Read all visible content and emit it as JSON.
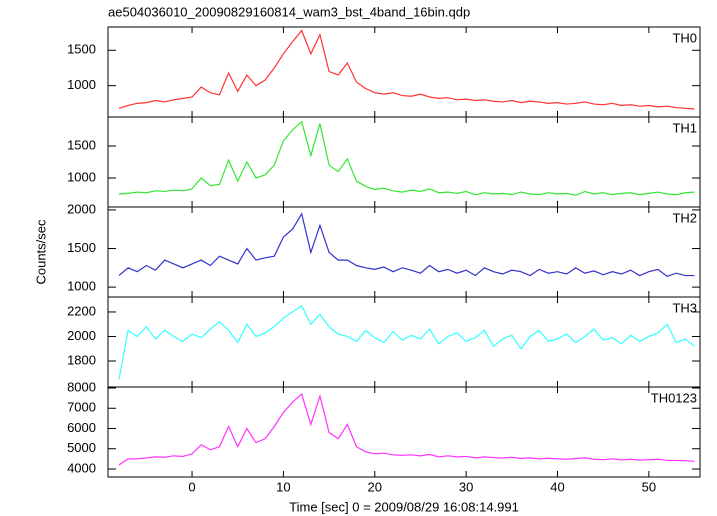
{
  "chart_data": [
    {
      "type": "line",
      "title": "ae504036010_20090829160814_wam3_bst_4band_16bin.qdp",
      "label": "TH0",
      "color": "#ff3333",
      "x": [
        -8,
        -7,
        -6,
        -5,
        -4,
        -3,
        -2,
        -1,
        0,
        1,
        2,
        3,
        4,
        5,
        6,
        7,
        8,
        9,
        10,
        11,
        12,
        13,
        14,
        15,
        16,
        17,
        18,
        19,
        20,
        21,
        22,
        23,
        24,
        25,
        26,
        27,
        28,
        29,
        30,
        31,
        32,
        33,
        34,
        35,
        36,
        37,
        38,
        39,
        40,
        41,
        42,
        43,
        44,
        45,
        46,
        47,
        48,
        49,
        50,
        51,
        52,
        53,
        54,
        55
      ],
      "values": [
        680,
        720,
        750,
        760,
        790,
        770,
        800,
        820,
        840,
        980,
        900,
        870,
        1180,
        920,
        1150,
        1000,
        1080,
        1250,
        1450,
        1620,
        1780,
        1450,
        1720,
        1200,
        1150,
        1320,
        1050,
        960,
        900,
        880,
        900,
        860,
        850,
        880,
        840,
        820,
        830,
        800,
        810,
        790,
        800,
        780,
        770,
        790,
        760,
        780,
        770,
        750,
        760,
        740,
        750,
        770,
        740,
        730,
        750,
        720,
        730,
        710,
        720,
        700,
        710,
        690,
        680,
        670
      ],
      "xlim": [
        -9.2,
        55.6
      ],
      "xticks": [
        0,
        10,
        20,
        30,
        40,
        50
      ],
      "ylim": [
        557,
        1829
      ],
      "yticks": [
        1000,
        1500
      ]
    },
    {
      "type": "line",
      "label": "TH1",
      "color": "#33e633",
      "x": [
        -8,
        -7,
        -6,
        -5,
        -4,
        -3,
        -2,
        -1,
        0,
        1,
        2,
        3,
        4,
        5,
        6,
        7,
        8,
        9,
        10,
        11,
        12,
        13,
        14,
        15,
        16,
        17,
        18,
        19,
        20,
        21,
        22,
        23,
        24,
        25,
        26,
        27,
        28,
        29,
        30,
        31,
        32,
        33,
        34,
        35,
        36,
        37,
        38,
        39,
        40,
        41,
        42,
        43,
        44,
        45,
        46,
        47,
        48,
        49,
        50,
        51,
        52,
        53,
        54,
        55
      ],
      "values": [
        750,
        760,
        780,
        770,
        800,
        790,
        810,
        800,
        830,
        1000,
        880,
        900,
        1280,
        950,
        1250,
        1000,
        1050,
        1200,
        1580,
        1750,
        1880,
        1350,
        1850,
        1200,
        1100,
        1300,
        950,
        870,
        820,
        840,
        800,
        780,
        810,
        790,
        830,
        770,
        780,
        760,
        790,
        740,
        770,
        750,
        760,
        740,
        780,
        750,
        740,
        770,
        750,
        760,
        730,
        790,
        750,
        770,
        740,
        760,
        770,
        740,
        760,
        780,
        750,
        740,
        770,
        780
      ],
      "xlim": [
        -9.2,
        55.6
      ],
      "xticks": [
        0,
        10,
        20,
        30,
        40,
        50
      ],
      "ylim": [
        547,
        1953
      ],
      "yticks": [
        1000,
        1500
      ]
    },
    {
      "type": "line",
      "label": "TH2",
      "ylabel": "Counts/sec",
      "color": "#3333cc",
      "x": [
        -8,
        -7,
        -6,
        -5,
        -4,
        -3,
        -2,
        -1,
        0,
        1,
        2,
        3,
        4,
        5,
        6,
        7,
        8,
        9,
        10,
        11,
        12,
        13,
        14,
        15,
        16,
        17,
        18,
        19,
        20,
        21,
        22,
        23,
        24,
        25,
        26,
        27,
        28,
        29,
        30,
        31,
        32,
        33,
        34,
        35,
        36,
        37,
        38,
        39,
        40,
        41,
        42,
        43,
        44,
        45,
        46,
        47,
        48,
        49,
        50,
        51,
        52,
        53,
        54,
        55
      ],
      "values": [
        1150,
        1250,
        1200,
        1280,
        1220,
        1350,
        1300,
        1250,
        1300,
        1350,
        1280,
        1400,
        1350,
        1300,
        1500,
        1350,
        1380,
        1400,
        1650,
        1750,
        1950,
        1450,
        1800,
        1450,
        1350,
        1350,
        1280,
        1250,
        1230,
        1260,
        1200,
        1250,
        1220,
        1180,
        1280,
        1200,
        1230,
        1180,
        1220,
        1150,
        1250,
        1200,
        1170,
        1220,
        1200,
        1150,
        1230,
        1180,
        1200,
        1170,
        1250,
        1180,
        1210,
        1160,
        1200,
        1170,
        1220,
        1150,
        1200,
        1230,
        1140,
        1180,
        1150,
        1150
      ],
      "xlim": [
        -9.2,
        55.6
      ],
      "xticks": [
        0,
        10,
        20,
        30,
        40,
        50
      ],
      "ylim": [
        872,
        2038
      ],
      "yticks": [
        1000,
        1500,
        2000
      ]
    },
    {
      "type": "line",
      "label": "TH3",
      "color": "#33ffff",
      "x": [
        -8,
        -7,
        -6,
        -5,
        -4,
        -3,
        -2,
        -1,
        0,
        1,
        2,
        3,
        4,
        5,
        6,
        7,
        8,
        9,
        10,
        11,
        12,
        13,
        14,
        15,
        16,
        17,
        18,
        19,
        20,
        21,
        22,
        23,
        24,
        25,
        26,
        27,
        28,
        29,
        30,
        31,
        32,
        33,
        34,
        35,
        36,
        37,
        38,
        39,
        40,
        41,
        42,
        43,
        44,
        45,
        46,
        47,
        48,
        49,
        50,
        51,
        52,
        53,
        54,
        55
      ],
      "values": [
        1650,
        2050,
        2000,
        2080,
        1980,
        2050,
        2000,
        1960,
        2020,
        1990,
        2060,
        2120,
        2050,
        1950,
        2100,
        2000,
        2030,
        2080,
        2150,
        2200,
        2250,
        2100,
        2180,
        2080,
        2020,
        2000,
        1960,
        2050,
        1990,
        1950,
        2040,
        1970,
        2010,
        1980,
        2060,
        1940,
        2000,
        2030,
        1960,
        1990,
        2050,
        1920,
        1980,
        2010,
        1900,
        2000,
        2050,
        1960,
        1980,
        2020,
        1950,
        2000,
        2060,
        1970,
        1990,
        1940,
        2010,
        1960,
        2000,
        2030,
        2100,
        1950,
        1980,
        1920
      ],
      "xlim": [
        -9.2,
        55.6
      ],
      "xticks": [
        0,
        10,
        20,
        30,
        40,
        50
      ],
      "ylim": [
        1588,
        2322
      ],
      "yticks": [
        1800,
        2000,
        2200
      ]
    },
    {
      "type": "line",
      "label": "TH0123",
      "xlabel": "Time [sec] 0 = 2009/08/29 16:08:14.991",
      "color": "#ff33ff",
      "x": [
        -8,
        -7,
        -6,
        -5,
        -4,
        -3,
        -2,
        -1,
        0,
        1,
        2,
        3,
        4,
        5,
        6,
        7,
        8,
        9,
        10,
        11,
        12,
        13,
        14,
        15,
        16,
        17,
        18,
        19,
        20,
        21,
        22,
        23,
        24,
        25,
        26,
        27,
        28,
        29,
        30,
        31,
        32,
        33,
        34,
        35,
        36,
        37,
        38,
        39,
        40,
        41,
        42,
        43,
        44,
        45,
        46,
        47,
        48,
        49,
        50,
        51,
        52,
        53,
        54,
        55
      ],
      "values": [
        4200,
        4500,
        4500,
        4550,
        4600,
        4580,
        4650,
        4620,
        4750,
        5200,
        4950,
        5100,
        6100,
        5100,
        6000,
        5300,
        5500,
        6100,
        6800,
        7300,
        7700,
        6200,
        7600,
        5800,
        5500,
        6200,
        5100,
        4850,
        4750,
        4780,
        4700,
        4680,
        4700,
        4650,
        4720,
        4600,
        4650,
        4600,
        4620,
        4550,
        4600,
        4560,
        4540,
        4580,
        4520,
        4550,
        4500,
        4530,
        4500,
        4480,
        4520,
        4550,
        4480,
        4460,
        4500,
        4450,
        4480,
        4440,
        4460,
        4480,
        4430,
        4420,
        4410,
        4380
      ],
      "xlim": [
        -9.2,
        55.6
      ],
      "xticks": [
        0,
        10,
        20,
        30,
        40,
        50
      ],
      "ylim": [
        3605,
        8050
      ],
      "yticks": [
        4000,
        5000,
        6000,
        7000,
        8000
      ]
    }
  ]
}
